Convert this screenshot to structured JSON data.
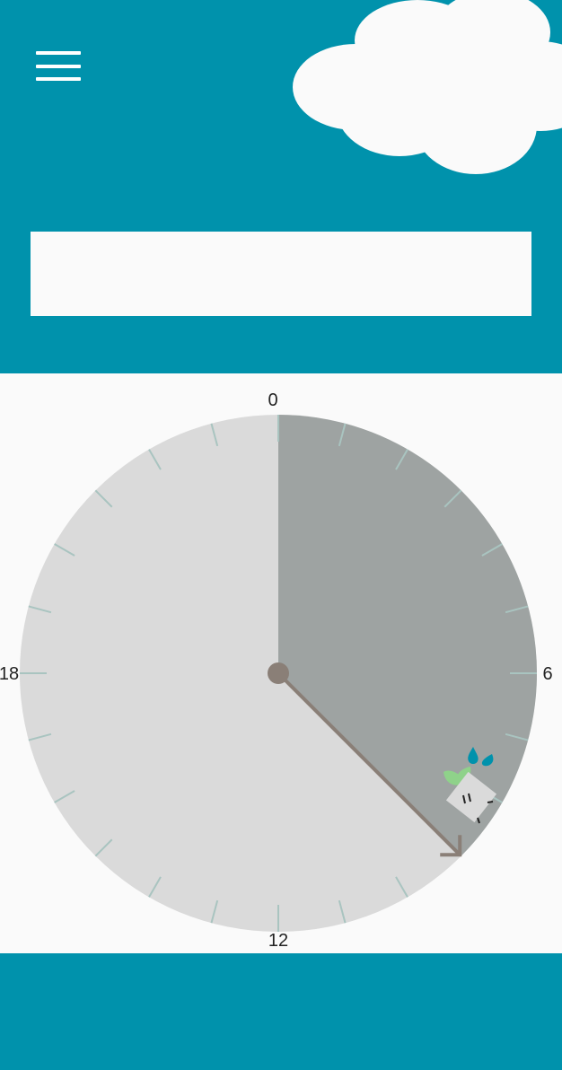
{
  "colors": {
    "brand": "#0092ac",
    "background": "#fafafa",
    "cloud": "#fafafa",
    "dial_base": "#dadada",
    "dial_elapsed": "#9ea3a2",
    "tick": "#a9c4c0",
    "hand": "#8a7f77",
    "label": "#222222",
    "drop": "#0092ac",
    "leaf": "#8fd28a"
  },
  "header": {
    "menu_icon": "hamburger-menu-icon",
    "decoration_icon": "cloud-icon",
    "search": {
      "value": "",
      "placeholder": ""
    }
  },
  "dial": {
    "hour_labels": [
      {
        "hour": 0,
        "text": "0"
      },
      {
        "hour": 6,
        "text": "6"
      },
      {
        "hour": 12,
        "text": "12"
      },
      {
        "hour": 18,
        "text": "18"
      }
    ],
    "hours_total": 24,
    "elapsed_from_hour": 0,
    "elapsed_to_hour": 9,
    "hand_hour": 9,
    "mascot_icon": "watering-plant-icon"
  },
  "footer": {}
}
